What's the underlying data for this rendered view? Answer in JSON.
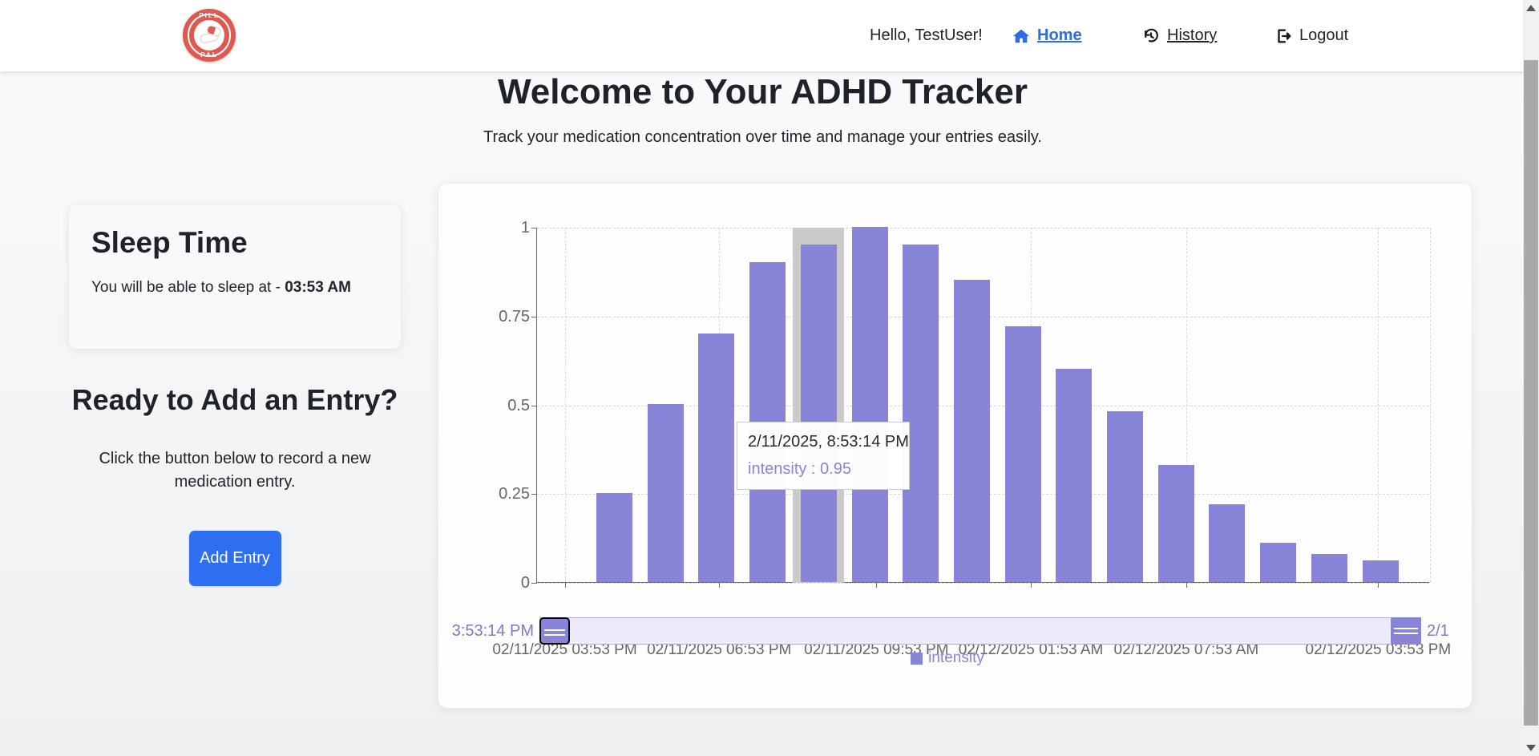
{
  "navbar": {
    "logo": {
      "top": "PILL",
      "bottom": "PAL"
    },
    "greeting": "Hello, TestUser!",
    "home_label": "Home",
    "history_label": "History",
    "logout_label": "Logout"
  },
  "header": {
    "title": "Welcome to Your ADHD Tracker",
    "subtitle": "Track your medication concentration over time and manage your entries easily."
  },
  "sleep_card": {
    "title": "Sleep Time",
    "text_prefix": "You will be able to sleep at - ",
    "time": "03:53 AM"
  },
  "entry_section": {
    "title": "Ready to Add an Entry?",
    "description": "Click the button below to record a new medication entry.",
    "button_label": "Add Entry"
  },
  "chart_data": {
    "type": "bar",
    "series": [
      {
        "name": "intensity",
        "color": "#8884d8",
        "values": [
          0.25,
          0.5,
          0.7,
          0.9,
          0.95,
          1.0,
          0.95,
          0.85,
          0.72,
          0.6,
          0.48,
          0.33,
          0.22,
          0.11,
          0.08,
          0.06
        ]
      }
    ],
    "ylim": [
      0,
      1
    ],
    "y_ticks": [
      "1",
      "0.75",
      "0.5",
      "0.25",
      "0"
    ],
    "x_ticks": [
      {
        "label": "02/11/2025 03:53 PM",
        "pos": 0.031
      },
      {
        "label": "02/11/2025 06:53 PM",
        "pos": 0.204
      },
      {
        "label": "02/11/2025 09:53 PM",
        "pos": 0.38
      },
      {
        "label": "02/12/2025 01:53 AM",
        "pos": 0.553
      },
      {
        "label": "02/12/2025 07:53 AM",
        "pos": 0.727
      },
      {
        "label": "02/12/2025 03:53 PM",
        "pos": 0.942
      }
    ],
    "grid": true,
    "legend": {
      "label": "intensity",
      "position": "bottom"
    },
    "highlight": {
      "index": 4,
      "tooltip_title": "2/11/2025, 8:53:14 PM",
      "tooltip_value": "intensity : 0.95"
    },
    "brush": {
      "start_label": "3:53:14 PM",
      "end_label": "2/1"
    }
  }
}
